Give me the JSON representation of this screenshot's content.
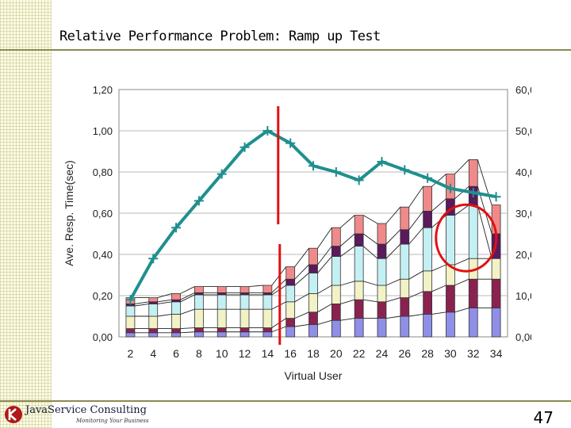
{
  "slide": {
    "title": "Relative Performance Problem:  Ramp up Test",
    "page_number": "47",
    "logo_text": "JavaService Consulting",
    "logo_tagline": "Monitoring Your Business"
  },
  "colors": {
    "background": "#ffffff",
    "plot_background": "#ffffff",
    "rule": "#8a8a52",
    "response_line": "#1f8f8f",
    "red_marker": "#e01010",
    "stack": [
      "#8f8fe8",
      "#8a2250",
      "#f2f2c6",
      "#c4f0f4",
      "#5a1a5c",
      "#f08a8a"
    ]
  },
  "chart_data": {
    "type": "bar",
    "xlabel": "Virtual User",
    "ylabel": "Ave. Resp. Time(sec)",
    "categories": [
      "2",
      "4",
      "6",
      "8",
      "10",
      "12",
      "14",
      "16",
      "18",
      "20",
      "22",
      "24",
      "26",
      "28",
      "30",
      "32",
      "34"
    ],
    "ylim": [
      0,
      1.2
    ],
    "y2lim": [
      0,
      60
    ],
    "yticks": [
      "0,00",
      "0,20",
      "0,40",
      "0,60",
      "0,80",
      "1,00",
      "1,20"
    ],
    "y2ticks": [
      "0,00",
      "10,00",
      "20,00",
      "30,00",
      "40,00",
      "50,00",
      "60,00"
    ],
    "grid": true,
    "stacked_series": [
      {
        "values": [
          1.0,
          1.0,
          1.0,
          1.2,
          1.2,
          1.2,
          1.2,
          2.5,
          3.0,
          4.0,
          4.5,
          4.5,
          5.0,
          5.5,
          6.0,
          7.0,
          7.0
        ]
      },
      {
        "values": [
          1.0,
          1.0,
          1.0,
          1.0,
          1.0,
          1.0,
          1.0,
          2.0,
          3.0,
          4.0,
          4.5,
          4.0,
          4.5,
          5.5,
          6.5,
          7.0,
          7.0
        ]
      },
      {
        "values": [
          3.0,
          3.0,
          3.5,
          4.5,
          4.5,
          4.5,
          4.5,
          4.0,
          4.5,
          4.5,
          4.5,
          4.0,
          4.5,
          5.0,
          5.0,
          5.0,
          5.0
        ]
      },
      {
        "values": [
          2.5,
          3.0,
          3.0,
          3.5,
          3.5,
          3.5,
          3.5,
          4.0,
          5.0,
          7.0,
          8.5,
          6.5,
          8.5,
          10.5,
          12.0,
          13.0,
          0.0
        ]
      },
      {
        "values": [
          0.5,
          0.5,
          0.5,
          0.5,
          0.5,
          0.5,
          0.5,
          1.5,
          2.0,
          2.5,
          3.0,
          3.5,
          3.5,
          4.0,
          4.0,
          4.5,
          6.0
        ]
      },
      {
        "values": [
          1.5,
          1.0,
          1.5,
          1.5,
          1.5,
          1.5,
          1.8,
          3.0,
          4.0,
          4.5,
          4.5,
          5.0,
          5.5,
          6.0,
          6.0,
          6.5,
          7.0
        ]
      }
    ],
    "line_series": {
      "axis": "left",
      "values": [
        0.18,
        0.38,
        0.53,
        0.66,
        0.79,
        0.92,
        1.0,
        0.94,
        0.83,
        0.8,
        0.76,
        0.85,
        0.81,
        0.77,
        0.72,
        0.7,
        0.68
      ]
    },
    "annotations": [
      {
        "type": "vertical-line",
        "at_x": 15,
        "color": "#e01010"
      },
      {
        "type": "ellipse",
        "around_x": 32,
        "around_y2": 24,
        "color": "#e01010"
      }
    ]
  }
}
